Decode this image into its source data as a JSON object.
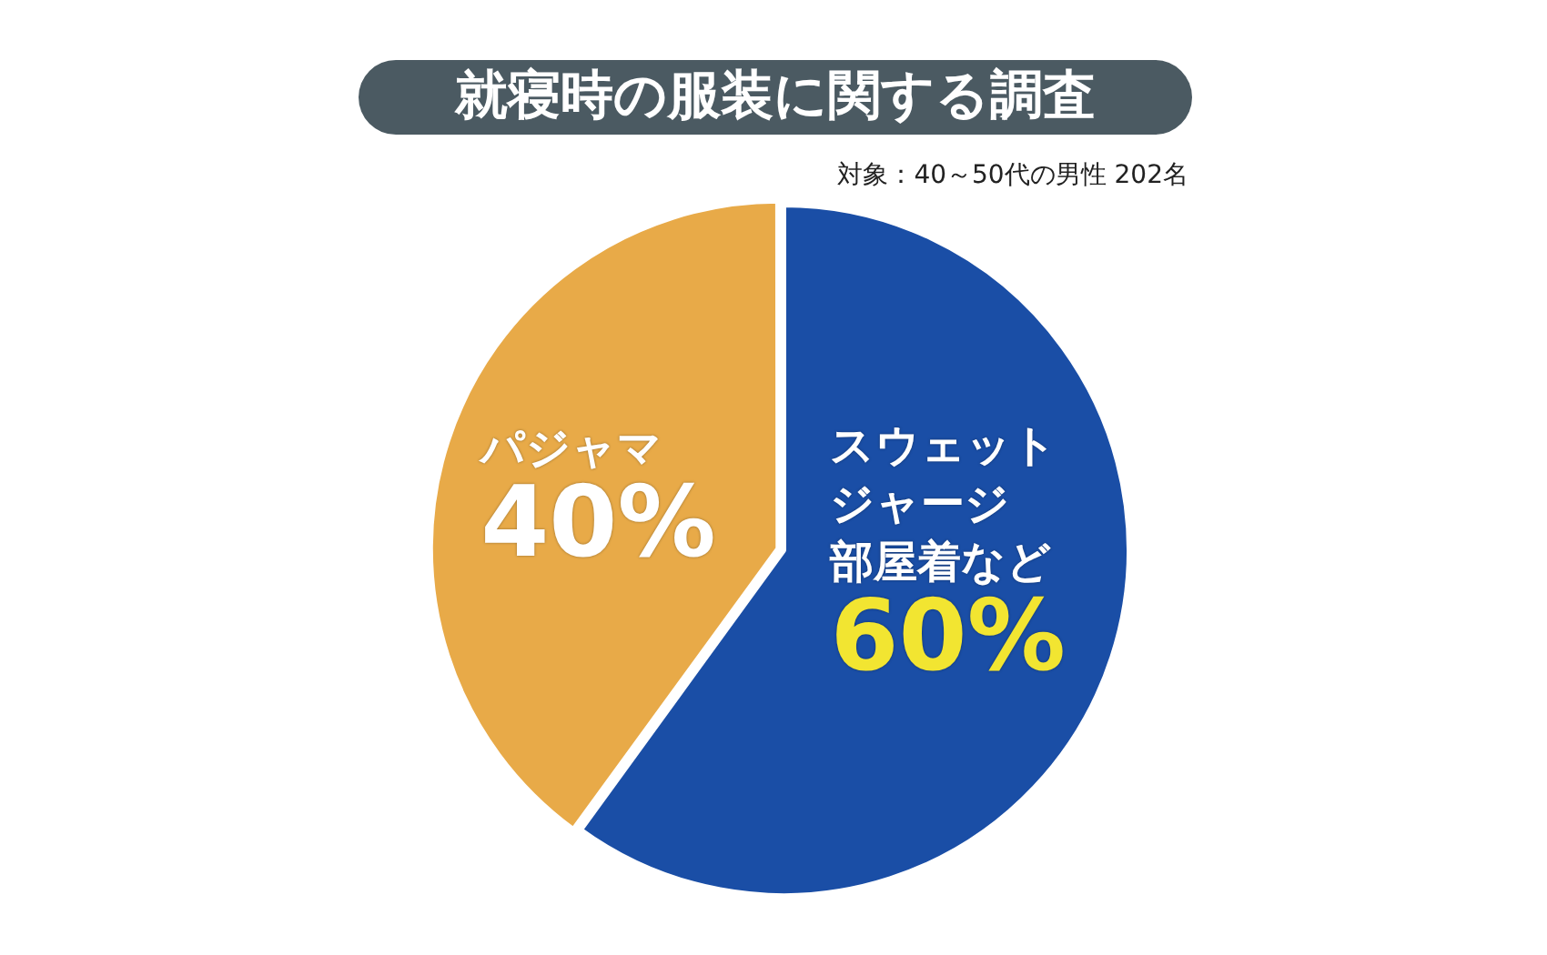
{
  "chart_data": {
    "type": "pie",
    "title": "就寝時の服装に関する調査",
    "subtitle": "対象：40～50代の男性 202名",
    "categories": [
      "スウェットジャージ部屋着など",
      "パジャマ"
    ],
    "values": [
      60,
      40
    ],
    "colors": [
      "#1a4ea6",
      "#e8aa48"
    ],
    "value_labels": [
      "60%",
      "40%"
    ]
  }
}
